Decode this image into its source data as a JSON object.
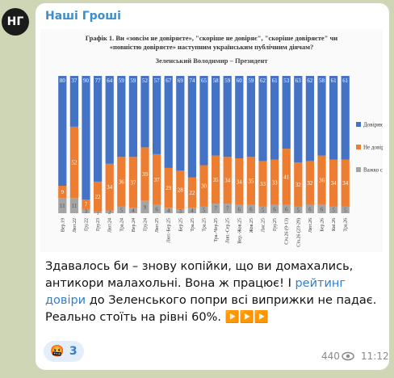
{
  "channel": {
    "avatar": "НГ",
    "name": "Наші Гроші"
  },
  "chart_data": {
    "type": "stacked_bar",
    "title": "Графік 1. Ви «зовсім не довіряєте», \"скоріше не довіряє\", \"скоріше довіряєте\" чи «повністю довіряєте» наступним українським публічним діячам?",
    "subtitle": "Зеленський Володимир – Президент",
    "categories": [
      "Вер.19",
      "Лют.22",
      "Гру.22",
      "Гру.23",
      "Лют.24",
      "Тра.24",
      "Вер.24",
      "Гру.24",
      "Лют.25",
      "Лют.-Бер.25",
      "Бер.25",
      "Тра.25",
      "Тра.25",
      "Тра.-Чер.25",
      "Лип.-Сер.25",
      "Вер.-Жов.25",
      "Жов.25",
      "Лис.25",
      "Гру.25",
      "Січ.26 (9-13)",
      "Січ.26 (23-29)",
      "Лют.26",
      "Бер.26",
      "Кві.26",
      "Тра.26"
    ],
    "series": [
      {
        "name": "Важко сказати",
        "color": "#a5a5a5",
        "values": [
          11,
          11,
          3,
          1,
          2,
          5,
          4,
          9,
          6,
          4,
          3,
          4,
          5,
          7,
          7,
          6,
          6,
          5,
          6,
          6,
          5,
          6,
          6,
          5,
          5
        ]
      },
      {
        "name": "Не довіряю",
        "color": "#ed7d31",
        "values": [
          9,
          52,
          7,
          22,
          34,
          36,
          37,
          39,
          37,
          29,
          28,
          22,
          30,
          35,
          34,
          34,
          35,
          33,
          33,
          41,
          32,
          32,
          36,
          34,
          34
        ]
      },
      {
        "name": "Довіряю",
        "color": "#4472c4",
        "values": [
          80,
          37,
          90,
          77,
          64,
          59,
          59,
          52,
          57,
          67,
          69,
          74,
          65,
          58,
          59,
          60,
          59,
          62,
          61,
          53,
          63,
          62,
          58,
          61,
          61
        ]
      }
    ],
    "legend": "right"
  },
  "message": {
    "text": [
      "Здавалось би – знову копійки, що ви домахались, антикори малахольні. Вона ж працює! І ",
      "рейтинг довіри",
      " до Зеленського попри всі виприжки не падає. Реально стоїть на рівні 60%. ▶️▶️▶️"
    ]
  },
  "reactions": [
    {
      "emoji": "🤬",
      "count": 3
    }
  ],
  "views": 440,
  "time": "11:12"
}
